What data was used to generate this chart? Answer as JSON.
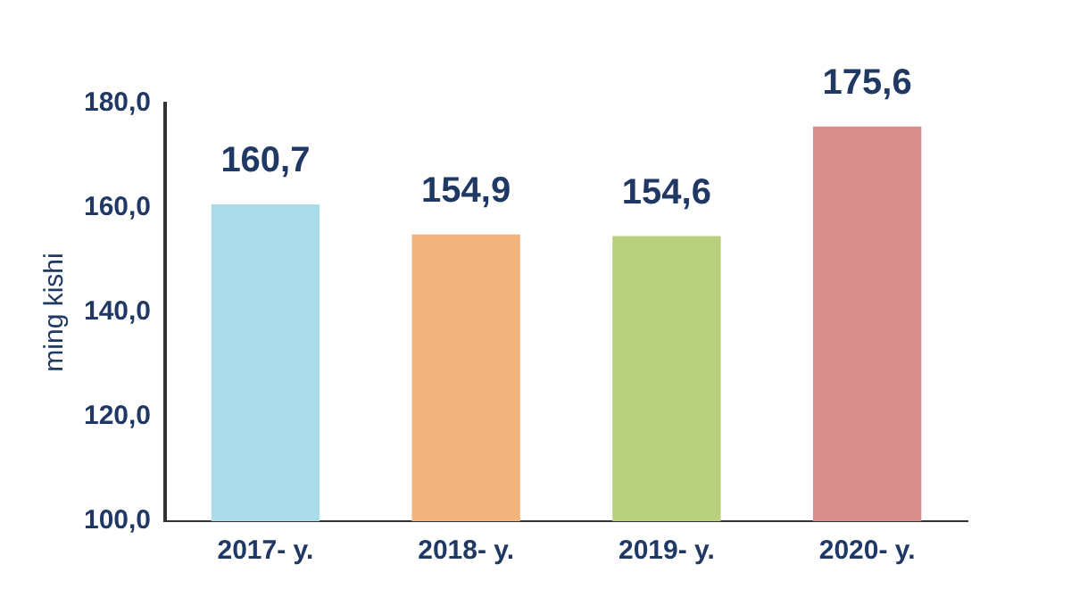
{
  "chart_data": {
    "type": "bar",
    "ylabel": "ming kishi",
    "categories": [
      "2017- y.",
      "2018- y.",
      "2019- y.",
      "2020- y."
    ],
    "values": [
      160.7,
      154.9,
      154.6,
      175.6
    ],
    "value_labels": [
      "160,7",
      "154,9",
      "154,6",
      "175,6"
    ],
    "colors": [
      "#a9dbe9",
      "#f2b47c",
      "#b8cf7c",
      "#d98c8c"
    ],
    "ylim": [
      100,
      180
    ],
    "yticks": [
      {
        "value": 100,
        "label": "100,0"
      },
      {
        "value": 120,
        "label": "120,0"
      },
      {
        "value": 140,
        "label": "140,0"
      },
      {
        "value": 160,
        "label": "160,0"
      },
      {
        "value": 180,
        "label": "180,0"
      }
    ],
    "grid": false,
    "legend": false
  }
}
